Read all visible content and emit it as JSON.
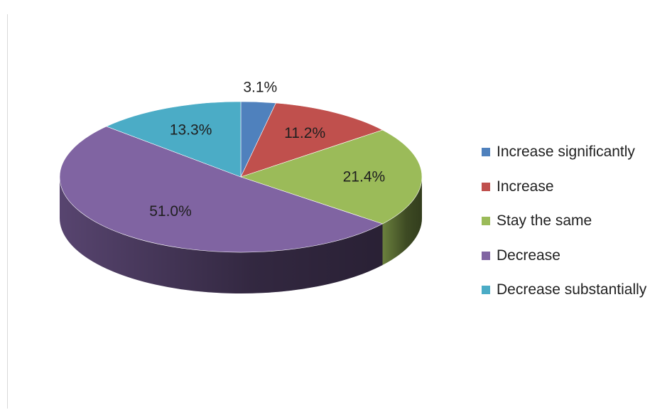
{
  "chart_data": {
    "type": "pie",
    "title": "",
    "categories": [
      "Increase significantly",
      "Increase",
      "Stay the same",
      "Decrease",
      "Decrease substantially"
    ],
    "values": [
      3.1,
      11.2,
      21.4,
      51.0,
      13.3
    ],
    "labels": [
      "3.1%",
      "11.2%",
      "21.4%",
      "51.0%",
      "13.3%"
    ],
    "colors": [
      "#4f81bd",
      "#c0504d",
      "#9bbb59",
      "#8064a2",
      "#4bacc6"
    ],
    "style": "3d",
    "legend_position": "right"
  }
}
